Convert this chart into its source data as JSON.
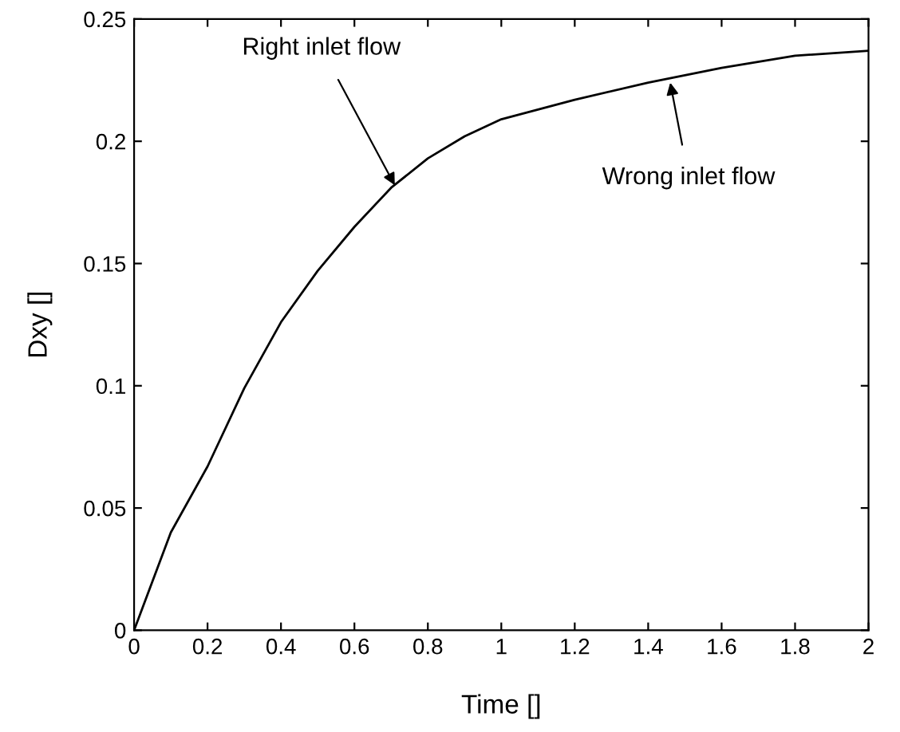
{
  "chart_data": {
    "type": "line",
    "xlabel": "Time []",
    "ylabel": "Dxy []",
    "x": [
      0,
      0.1,
      0.2,
      0.3,
      0.4,
      0.5,
      0.6,
      0.7,
      0.8,
      0.9,
      1.0,
      1.2,
      1.4,
      1.6,
      1.8,
      2.0
    ],
    "series": [
      {
        "color": "#000000",
        "values": [
          0,
          0.04,
          0.067,
          0.099,
          0.126,
          0.147,
          0.165,
          0.181,
          0.193,
          0.202,
          0.209,
          0.217,
          0.224,
          0.23,
          0.235,
          0.237
        ]
      }
    ],
    "xlim": [
      0,
      2
    ],
    "ylim": [
      0,
      0.25
    ],
    "xticks": [
      0,
      0.2,
      0.4,
      0.6,
      0.8,
      1,
      1.2,
      1.4,
      1.6,
      1.8,
      2
    ],
    "yticks": [
      0,
      0.05,
      0.1,
      0.15,
      0.2,
      0.25
    ],
    "grid": false,
    "legend": false,
    "marker": "none",
    "line_style": "solid",
    "annotations": [
      {
        "text": "Right inlet flow",
        "x": 0.71,
        "y": 0.182
      },
      {
        "text": "Wrong inlet flow",
        "x": 1.46,
        "y": 0.224
      }
    ]
  }
}
